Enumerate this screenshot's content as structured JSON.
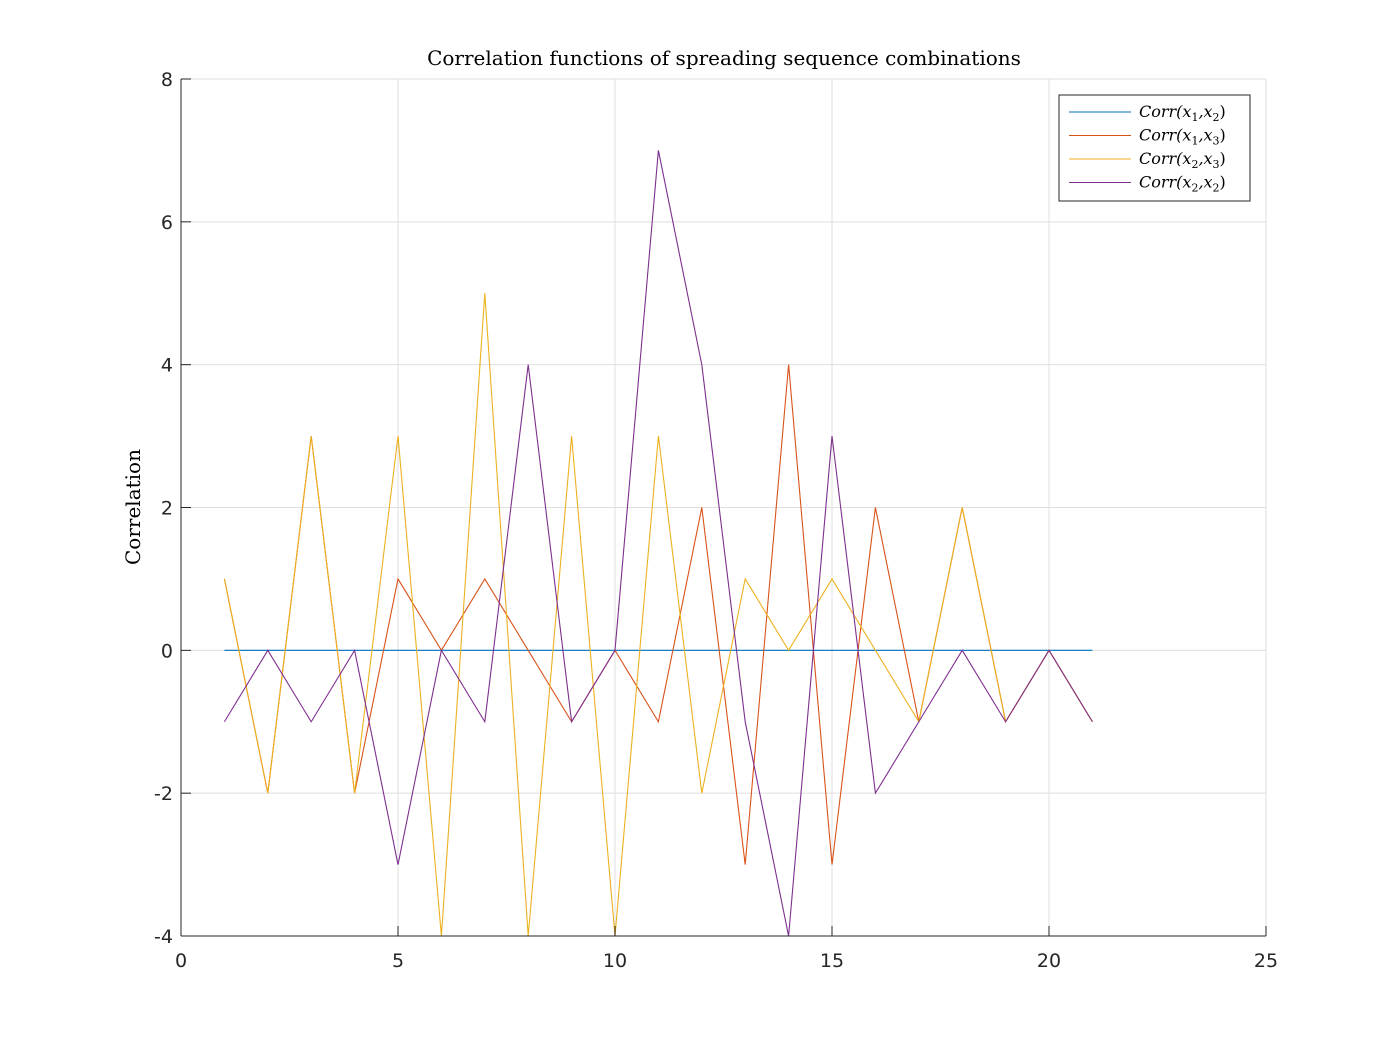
{
  "chart_data": {
    "type": "line",
    "title": "Correlation functions of spreading sequence combinations",
    "xlabel": "",
    "ylabel": "Correlation",
    "xlim": [
      0,
      25
    ],
    "ylim": [
      -4,
      8
    ],
    "xticks": [
      0,
      5,
      10,
      15,
      20,
      25
    ],
    "yticks": [
      -4,
      -2,
      0,
      2,
      4,
      6,
      8
    ],
    "grid": true,
    "legend_position": "top-right",
    "x": [
      1,
      2,
      3,
      4,
      5,
      6,
      7,
      8,
      9,
      10,
      11,
      12,
      13,
      14,
      15,
      16,
      17,
      18,
      19,
      20,
      21
    ],
    "series": [
      {
        "name": "Corr(x1,x2)",
        "label_main": "Corr(x",
        "sub1": "1",
        "mid": ",x",
        "sub2": "2",
        "color": "#0072BD",
        "values": [
          0,
          0,
          0,
          0,
          0,
          0,
          0,
          0,
          0,
          0,
          0,
          0,
          0,
          0,
          0,
          0,
          0,
          0,
          0,
          0,
          0
        ]
      },
      {
        "name": "Corr(x1,x3)",
        "label_main": "Corr(x",
        "sub1": "1",
        "mid": ",x",
        "sub2": "3",
        "color": "#D95319",
        "values": [
          1,
          -2,
          3,
          -2,
          1,
          0,
          1,
          0,
          -1,
          0,
          -1,
          2,
          -3,
          4,
          -3,
          2,
          -1,
          2,
          -1,
          0,
          -1
        ]
      },
      {
        "name": "Corr(x2,x3)",
        "label_main": "Corr(x",
        "sub1": "2",
        "mid": ",x",
        "sub2": "3",
        "color": "#EDB120",
        "values": [
          1,
          -2,
          3,
          -2,
          3,
          -4,
          5,
          -4,
          3,
          -4,
          3,
          -2,
          1,
          0,
          1,
          0,
          -1,
          2,
          -1,
          0,
          -1
        ]
      },
      {
        "name": "Corr(x2,x2)",
        "label_main": "Corr(x",
        "sub1": "2",
        "mid": ",x",
        "sub2": "2",
        "color": "#7E2F8E",
        "values": [
          -1,
          0,
          -1,
          0,
          -3,
          0,
          -1,
          4,
          -1,
          0,
          7,
          4,
          -1,
          -4,
          3,
          -2,
          -1,
          0,
          -1,
          0,
          -1
        ]
      }
    ]
  }
}
